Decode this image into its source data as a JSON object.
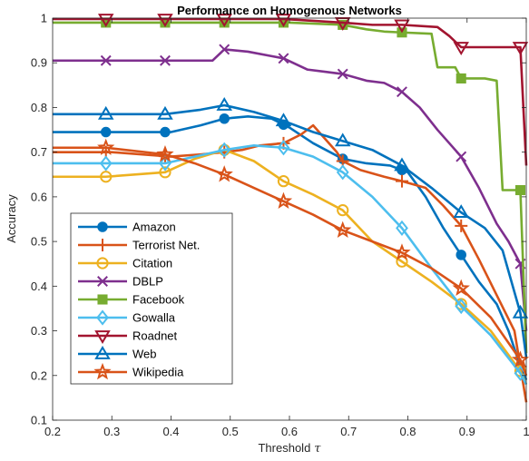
{
  "chart_data": {
    "type": "line",
    "title": "Performance on Homogenous Networks",
    "xlabel": "Threshold",
    "xlabel_symbol": "τ",
    "ylabel": "Accuracy",
    "xlim": [
      0.2,
      1.0
    ],
    "ylim": [
      0.1,
      1.0
    ],
    "xticks": [
      "0.2",
      "0.3",
      "0.4",
      "0.5",
      "0.6",
      "0.7",
      "0.8",
      "0.9",
      "1"
    ],
    "yticks": [
      "0.1",
      "0.2",
      "0.3",
      "0.4",
      "0.5",
      "0.6",
      "0.7",
      "0.8",
      "0.9",
      "1"
    ],
    "grid": false,
    "legend_position": "bottom-left",
    "markers_x": [
      0.29,
      0.39,
      0.49,
      0.59,
      0.69,
      0.79,
      0.89,
      0.99
    ],
    "series": [
      {
        "name": "Amazon",
        "color": "#0072BD",
        "marker": "circle",
        "x": [
          0.2,
          0.3,
          0.4,
          0.45,
          0.49,
          0.53,
          0.57,
          0.6,
          0.64,
          0.69,
          0.73,
          0.77,
          0.8,
          0.83,
          0.86,
          0.89,
          0.92,
          0.95,
          0.97,
          0.99,
          1.0
        ],
        "y": [
          0.745,
          0.745,
          0.745,
          0.76,
          0.775,
          0.78,
          0.775,
          0.755,
          0.72,
          0.685,
          0.675,
          0.67,
          0.655,
          0.6,
          0.53,
          0.47,
          0.41,
          0.36,
          0.3,
          0.22,
          0.19
        ]
      },
      {
        "name": "Terrorist Net.",
        "color": "#D95319",
        "marker": "plus",
        "x": [
          0.2,
          0.3,
          0.4,
          0.45,
          0.49,
          0.52,
          0.55,
          0.59,
          0.62,
          0.64,
          0.66,
          0.68,
          0.69,
          0.72,
          0.76,
          0.79,
          0.83,
          0.86,
          0.89,
          0.92,
          0.95,
          0.98,
          0.99,
          1.0
        ],
        "y": [
          0.7,
          0.7,
          0.69,
          0.695,
          0.7,
          0.705,
          0.715,
          0.72,
          0.74,
          0.76,
          0.73,
          0.7,
          0.68,
          0.66,
          0.645,
          0.635,
          0.62,
          0.58,
          0.535,
          0.46,
          0.38,
          0.3,
          0.22,
          0.14
        ]
      },
      {
        "name": "Citation",
        "color": "#EDB120",
        "marker": "circle-open",
        "x": [
          0.2,
          0.29,
          0.39,
          0.44,
          0.49,
          0.54,
          0.59,
          0.64,
          0.69,
          0.74,
          0.79,
          0.84,
          0.89,
          0.94,
          0.99,
          1.0
        ],
        "y": [
          0.645,
          0.645,
          0.655,
          0.685,
          0.705,
          0.68,
          0.635,
          0.605,
          0.57,
          0.5,
          0.455,
          0.41,
          0.36,
          0.3,
          0.21,
          0.18
        ]
      },
      {
        "name": "DBLP",
        "color": "#7E2F8E",
        "marker": "x",
        "x": [
          0.2,
          0.29,
          0.39,
          0.47,
          0.49,
          0.53,
          0.57,
          0.59,
          0.63,
          0.66,
          0.69,
          0.73,
          0.76,
          0.79,
          0.82,
          0.85,
          0.87,
          0.89,
          0.92,
          0.95,
          0.97,
          0.99,
          1.0
        ],
        "y": [
          0.905,
          0.905,
          0.905,
          0.905,
          0.93,
          0.925,
          0.915,
          0.91,
          0.885,
          0.88,
          0.875,
          0.86,
          0.855,
          0.835,
          0.8,
          0.75,
          0.72,
          0.69,
          0.62,
          0.54,
          0.5,
          0.45,
          0.3
        ]
      },
      {
        "name": "Facebook",
        "color": "#77AC30",
        "marker": "square",
        "x": [
          0.2,
          0.3,
          0.4,
          0.5,
          0.6,
          0.69,
          0.73,
          0.76,
          0.79,
          0.84,
          0.85,
          0.88,
          0.89,
          0.93,
          0.95,
          0.96,
          0.99,
          1.0
        ],
        "y": [
          0.99,
          0.99,
          0.99,
          0.99,
          0.99,
          0.985,
          0.975,
          0.97,
          0.968,
          0.965,
          0.89,
          0.89,
          0.865,
          0.865,
          0.86,
          0.615,
          0.615,
          0.25
        ]
      },
      {
        "name": "Gowalla",
        "color": "#4DBEEE",
        "marker": "diamond",
        "x": [
          0.2,
          0.29,
          0.39,
          0.44,
          0.49,
          0.54,
          0.59,
          0.64,
          0.69,
          0.74,
          0.79,
          0.84,
          0.89,
          0.94,
          0.99,
          1.0
        ],
        "y": [
          0.675,
          0.675,
          0.675,
          0.69,
          0.705,
          0.715,
          0.71,
          0.69,
          0.655,
          0.6,
          0.53,
          0.44,
          0.355,
          0.29,
          0.205,
          0.18
        ]
      },
      {
        "name": "Roadnet",
        "color": "#A2142F",
        "marker": "triangle-down",
        "x": [
          0.2,
          0.29,
          0.39,
          0.49,
          0.59,
          0.69,
          0.74,
          0.79,
          0.85,
          0.87,
          0.89,
          0.92,
          0.95,
          0.97,
          0.99,
          1.0
        ],
        "y": [
          0.998,
          0.998,
          0.998,
          0.998,
          0.998,
          0.99,
          0.985,
          0.985,
          0.98,
          0.96,
          0.935,
          0.935,
          0.935,
          0.935,
          0.935,
          0.67
        ]
      },
      {
        "name": "Web",
        "color": "#0072BD",
        "marker": "triangle-up",
        "x": [
          0.2,
          0.29,
          0.39,
          0.45,
          0.49,
          0.54,
          0.59,
          0.64,
          0.69,
          0.74,
          0.79,
          0.84,
          0.89,
          0.93,
          0.96,
          0.99,
          1.0
        ],
        "y": [
          0.785,
          0.785,
          0.785,
          0.795,
          0.805,
          0.79,
          0.77,
          0.745,
          0.725,
          0.705,
          0.67,
          0.62,
          0.565,
          0.53,
          0.48,
          0.34,
          0.24
        ]
      },
      {
        "name": "Wikipedia",
        "color": "#D95319",
        "marker": "star",
        "x": [
          0.2,
          0.29,
          0.39,
          0.44,
          0.49,
          0.54,
          0.59,
          0.64,
          0.69,
          0.74,
          0.79,
          0.84,
          0.89,
          0.94,
          0.99,
          1.0
        ],
        "y": [
          0.71,
          0.71,
          0.695,
          0.675,
          0.65,
          0.62,
          0.59,
          0.56,
          0.525,
          0.5,
          0.475,
          0.44,
          0.395,
          0.33,
          0.235,
          0.2
        ]
      }
    ]
  }
}
